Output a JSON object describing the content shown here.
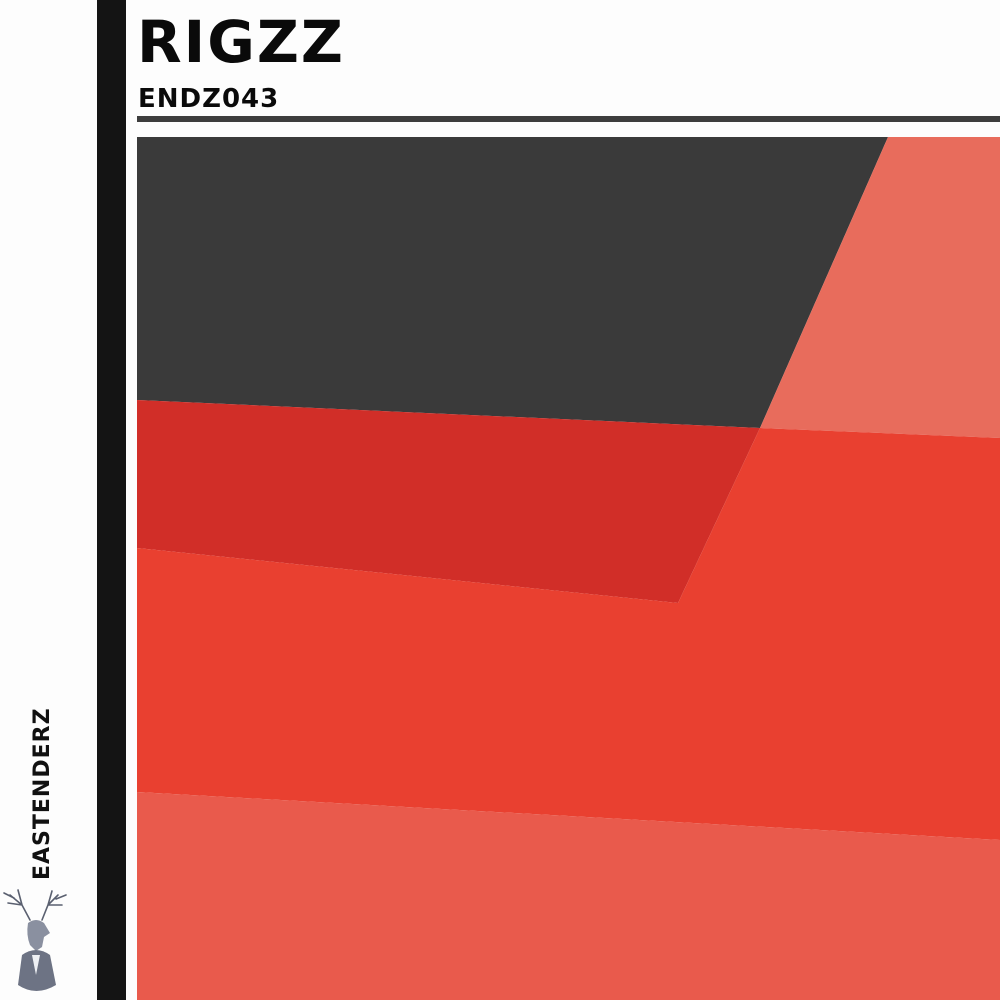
{
  "artist": "RIGZZ",
  "catalog_number": "ENDZ043",
  "label": "EASTENDERZ",
  "logo": {
    "icon": "stag-head-in-suit",
    "text": ""
  },
  "colors": {
    "dark_gray": "#3a3a3a",
    "salmon": "#e86c5c",
    "dark_red": "#d12e28",
    "red": "#e94030",
    "light_red": "#e95a4c",
    "side_bar": "#141414"
  }
}
